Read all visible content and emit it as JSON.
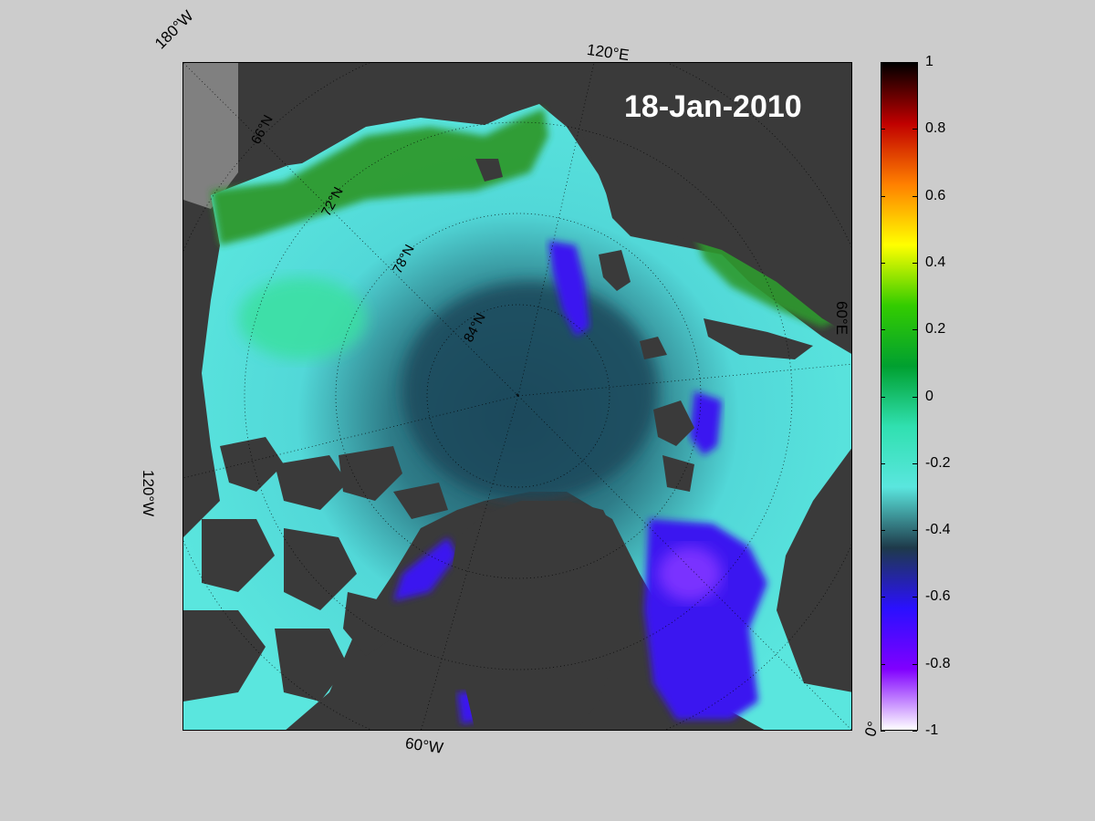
{
  "map": {
    "date": "18-Jan-2010",
    "longitude_labels": {
      "lon_180w": "180°W",
      "lon_120e": "120°E",
      "lon_60e": "60°E",
      "lon_120w": "120°W",
      "lon_60w": "60°W",
      "lon_0": "0°"
    },
    "latitude_labels": {
      "lat_66n": "66°N",
      "lat_72n": "72°N",
      "lat_78n": "78°N",
      "lat_84n": "84°N"
    },
    "colors": {
      "land": "#3a3a3a",
      "ocean_outside": "#808080",
      "anomaly_positive": "#2e9a2e",
      "anomaly_zero": "#2fd6a0",
      "anomaly_mid": "#5ae6de",
      "anomaly_deep": "#1e4a5c",
      "anomaly_strong_negative": "#3a14f0"
    }
  },
  "colorbar": {
    "ticks": [
      "1",
      "0.8",
      "0.6",
      "0.4",
      "0.2",
      "0",
      "-0.2",
      "-0.4",
      "-0.6",
      "-0.8",
      "-1"
    ],
    "values": [
      1,
      0.8,
      0.6,
      0.4,
      0.2,
      0,
      -0.2,
      -0.4,
      -0.6,
      -0.8,
      -1
    ],
    "range": [
      -1,
      1
    ],
    "stops": [
      "#000000",
      "#c00000",
      "#ff8000",
      "#ffff00",
      "#33cc00",
      "#00a030",
      "#30e0b0",
      "#5ae6de",
      "#1e3a4a",
      "#2a10ff",
      "#8000ff",
      "#ffffff"
    ]
  }
}
